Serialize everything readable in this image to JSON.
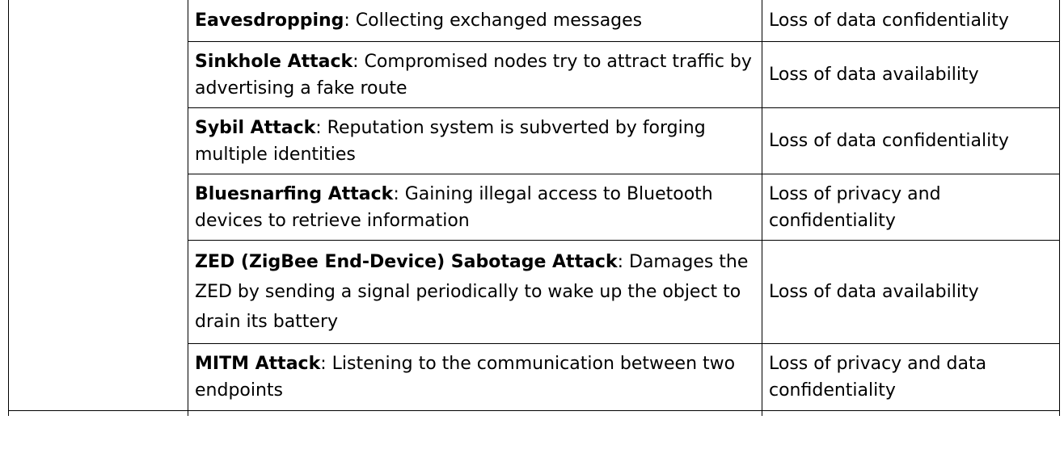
{
  "rows": [
    {
      "term": "Eavesdropping",
      "description": ": Collecting exchanged messages",
      "impact": "Loss of data confidentiality"
    },
    {
      "term": "Sinkhole Attack",
      "description": ": Compromised nodes try to attract traffic by advertising a fake route",
      "impact": "Loss of data availability"
    },
    {
      "term": "Sybil Attack",
      "description": ": Reputation system is subverted by forging multiple identities",
      "impact": "Loss of data confidentiality"
    },
    {
      "term": "Bluesnarfing Attack",
      "description": ": Gaining illegal access to Bluetooth devices to retrieve information",
      "impact": "Loss of privacy and confidentiality"
    },
    {
      "term": "ZED (ZigBee End-Device) Sabotage Attack",
      "description": ": Damages the ZED by sending a signal periodically to wake up the object to drain its battery",
      "impact": "Loss of data availability"
    },
    {
      "term": "MITM Attack",
      "description": ": Listening to the communication between two endpoints",
      "impact": "Loss of privacy and data confidentiality"
    }
  ]
}
